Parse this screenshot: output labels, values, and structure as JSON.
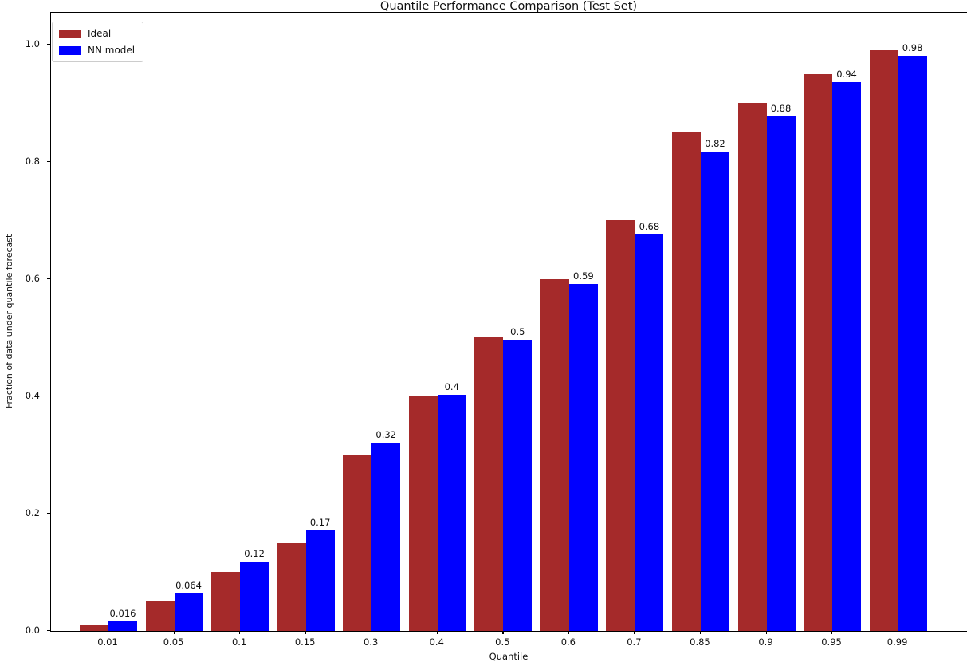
{
  "figure": {
    "title": "Quantile Performance Comparison (Test Set)",
    "xlabel": "Quantile",
    "ylabel": "Fraction of data under quantile forecast"
  },
  "chart_data": {
    "type": "bar",
    "title": "Quantile Performance Comparison (Test Set)",
    "xlabel": "Quantile",
    "ylabel": "Fraction of data under quantile forecast",
    "categories": [
      "0.01",
      "0.05",
      "0.1",
      "0.15",
      "0.3",
      "0.4",
      "0.5",
      "0.6",
      "0.7",
      "0.85",
      "0.9",
      "0.95",
      "0.99"
    ],
    "series": [
      {
        "name": "Ideal",
        "color": "#A52A2A",
        "values": [
          0.01,
          0.05,
          0.1,
          0.15,
          0.3,
          0.4,
          0.5,
          0.6,
          0.7,
          0.85,
          0.9,
          0.95,
          0.99
        ]
      },
      {
        "name": "NN model",
        "color": "#0000FF",
        "values": [
          0.016,
          0.064,
          0.118,
          0.172,
          0.321,
          0.403,
          0.497,
          0.592,
          0.676,
          0.818,
          0.878,
          0.936,
          0.981
        ],
        "value_labels": [
          "0.016",
          "0.064",
          "0.12",
          "0.17",
          "0.32",
          "0.4",
          "0.5",
          "0.59",
          "0.68",
          "0.82",
          "0.88",
          "0.94",
          "0.98"
        ]
      }
    ],
    "yticks": [
      "0.0",
      "0.2",
      "0.4",
      "0.6",
      "0.8",
      "1.0"
    ],
    "ytick_values": [
      0.0,
      0.2,
      0.4,
      0.6,
      0.8,
      1.0
    ],
    "ylim": [
      0,
      1.054
    ],
    "grid": false,
    "legend_position": "upper left",
    "value_labels_shown_for": "NN model"
  }
}
